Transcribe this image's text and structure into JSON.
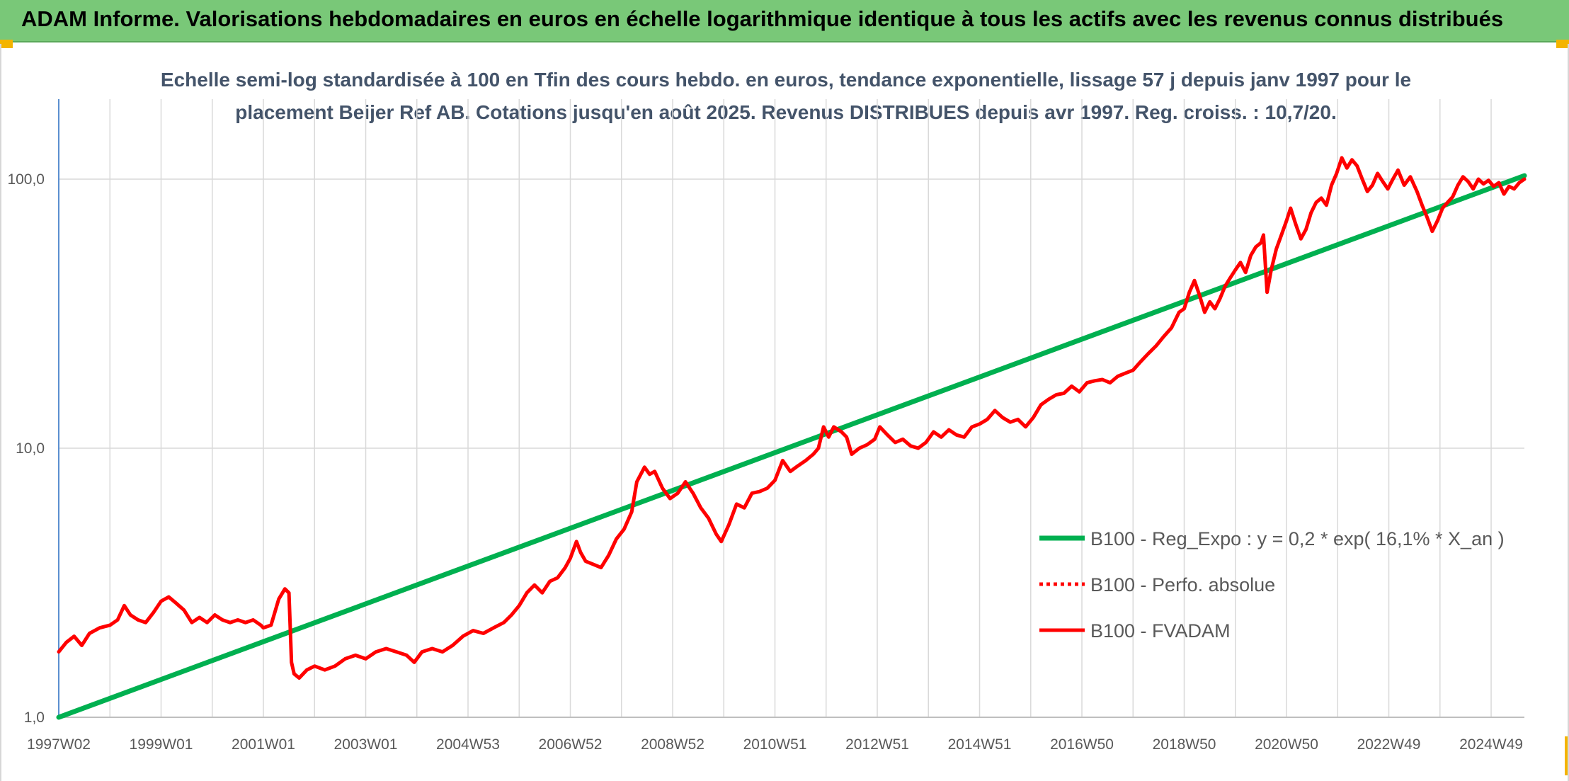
{
  "banner": {
    "title": "ADAM Informe. Valorisations hebdomadaires en euros en échelle logarithmique identique à tous les actifs avec les revenus connus distribués"
  },
  "colors": {
    "banner_bg": "#79c878",
    "trend": "#00b050",
    "series": "#ff0000",
    "grid": "#d9d9d9",
    "title_text": "#44546a"
  },
  "chart_data": {
    "type": "line",
    "title_lines": [
      "Echelle semi-log standardisée à 100 en Tfin des cours hebdo. en euros, tendance exponentielle, lissage 57 j depuis janv 1997 pour le",
      "placement Beijer Ref AB. Cotations jusqu'en août 2025. Revenus DISTRIBUES depuis avr 1997. Reg. croiss. : 10,7/20."
    ],
    "y_scale": "log",
    "ylim": [
      1,
      200
    ],
    "xlim": [
      1997.0,
      2025.65
    ],
    "y_ticks": [
      {
        "value": 1,
        "label": "1,0"
      },
      {
        "value": 10,
        "label": "10,0"
      },
      {
        "value": 100,
        "label": "100,0"
      }
    ],
    "x_ticks": [
      {
        "value": 1997.0,
        "label": "1997W02"
      },
      {
        "value": 1999.0,
        "label": "1999W01"
      },
      {
        "value": 2001.0,
        "label": "2001W01"
      },
      {
        "value": 2003.0,
        "label": "2003W01"
      },
      {
        "value": 2005.0,
        "label": "2004W53"
      },
      {
        "value": 2007.0,
        "label": "2006W52"
      },
      {
        "value": 2009.0,
        "label": "2008W52"
      },
      {
        "value": 2011.0,
        "label": "2010W51"
      },
      {
        "value": 2013.0,
        "label": "2012W51"
      },
      {
        "value": 2015.0,
        "label": "2014W51"
      },
      {
        "value": 2017.0,
        "label": "2016W50"
      },
      {
        "value": 2019.0,
        "label": "2018W50"
      },
      {
        "value": 2021.0,
        "label": "2020W50"
      },
      {
        "value": 2023.0,
        "label": "2022W49"
      },
      {
        "value": 2025.0,
        "label": "2024W49"
      }
    ],
    "x_tick_label_values": [
      1997.0,
      1999.0,
      2001.0,
      2003.0,
      2005.0,
      2007.0,
      2009.0,
      2011.0,
      2013.0,
      2015.0,
      2017.0,
      2019.0,
      2021.0,
      2023.0,
      2025.0
    ],
    "grid": true,
    "legend_position": "right",
    "series": [
      {
        "name": "B100 - Reg_Expo : y = 0,2 * exp( 16,1% *  X_an )",
        "style": "solid",
        "color": "#00b050",
        "points": [
          [
            1997.0,
            1.0
          ],
          [
            2025.65,
            103
          ]
        ]
      },
      {
        "name": "B100 - Perfo. absolue",
        "style": "dotted",
        "color": "#ff0000",
        "points": []
      },
      {
        "name": "B100 - FVADAM",
        "style": "solid",
        "color": "#ff0000",
        "points": [
          [
            1997.0,
            1.75
          ],
          [
            1997.15,
            1.9
          ],
          [
            1997.3,
            2.0
          ],
          [
            1997.45,
            1.85
          ],
          [
            1997.6,
            2.05
          ],
          [
            1997.8,
            2.15
          ],
          [
            1998.0,
            2.2
          ],
          [
            1998.15,
            2.3
          ],
          [
            1998.28,
            2.6
          ],
          [
            1998.4,
            2.4
          ],
          [
            1998.55,
            2.3
          ],
          [
            1998.7,
            2.25
          ],
          [
            1998.85,
            2.45
          ],
          [
            1999.0,
            2.7
          ],
          [
            1999.15,
            2.8
          ],
          [
            1999.3,
            2.65
          ],
          [
            1999.45,
            2.5
          ],
          [
            1999.6,
            2.25
          ],
          [
            1999.75,
            2.35
          ],
          [
            1999.9,
            2.25
          ],
          [
            2000.05,
            2.4
          ],
          [
            2000.2,
            2.3
          ],
          [
            2000.35,
            2.25
          ],
          [
            2000.5,
            2.3
          ],
          [
            2000.65,
            2.25
          ],
          [
            2000.8,
            2.3
          ],
          [
            2000.95,
            2.2
          ],
          [
            2001.0,
            2.15
          ],
          [
            2001.15,
            2.2
          ],
          [
            2001.3,
            2.75
          ],
          [
            2001.42,
            3.0
          ],
          [
            2001.5,
            2.9
          ],
          [
            2001.55,
            1.6
          ],
          [
            2001.6,
            1.45
          ],
          [
            2001.7,
            1.4
          ],
          [
            2001.85,
            1.5
          ],
          [
            2002.0,
            1.55
          ],
          [
            2002.2,
            1.5
          ],
          [
            2002.4,
            1.55
          ],
          [
            2002.6,
            1.65
          ],
          [
            2002.8,
            1.7
          ],
          [
            2003.0,
            1.65
          ],
          [
            2003.2,
            1.75
          ],
          [
            2003.4,
            1.8
          ],
          [
            2003.6,
            1.75
          ],
          [
            2003.8,
            1.7
          ],
          [
            2003.95,
            1.6
          ],
          [
            2004.1,
            1.75
          ],
          [
            2004.3,
            1.8
          ],
          [
            2004.5,
            1.75
          ],
          [
            2004.7,
            1.85
          ],
          [
            2004.9,
            2.0
          ],
          [
            2005.1,
            2.1
          ],
          [
            2005.3,
            2.05
          ],
          [
            2005.5,
            2.15
          ],
          [
            2005.7,
            2.25
          ],
          [
            2005.85,
            2.4
          ],
          [
            2006.0,
            2.6
          ],
          [
            2006.15,
            2.9
          ],
          [
            2006.3,
            3.1
          ],
          [
            2006.45,
            2.9
          ],
          [
            2006.6,
            3.2
          ],
          [
            2006.75,
            3.3
          ],
          [
            2006.9,
            3.6
          ],
          [
            2007.0,
            3.9
          ],
          [
            2007.12,
            4.5
          ],
          [
            2007.2,
            4.1
          ],
          [
            2007.3,
            3.8
          ],
          [
            2007.45,
            3.7
          ],
          [
            2007.6,
            3.6
          ],
          [
            2007.75,
            4.0
          ],
          [
            2007.9,
            4.6
          ],
          [
            2008.05,
            5.0
          ],
          [
            2008.2,
            5.8
          ],
          [
            2008.3,
            7.5
          ],
          [
            2008.45,
            8.5
          ],
          [
            2008.55,
            8.0
          ],
          [
            2008.65,
            8.2
          ],
          [
            2008.8,
            7.1
          ],
          [
            2008.95,
            6.5
          ],
          [
            2009.1,
            6.8
          ],
          [
            2009.25,
            7.5
          ],
          [
            2009.4,
            6.8
          ],
          [
            2009.55,
            6.0
          ],
          [
            2009.7,
            5.5
          ],
          [
            2009.85,
            4.8
          ],
          [
            2009.95,
            4.5
          ],
          [
            2010.1,
            5.2
          ],
          [
            2010.25,
            6.2
          ],
          [
            2010.4,
            6.0
          ],
          [
            2010.55,
            6.8
          ],
          [
            2010.7,
            6.9
          ],
          [
            2010.85,
            7.1
          ],
          [
            2011.0,
            7.6
          ],
          [
            2011.15,
            9.0
          ],
          [
            2011.3,
            8.2
          ],
          [
            2011.45,
            8.6
          ],
          [
            2011.6,
            9.0
          ],
          [
            2011.75,
            9.5
          ],
          [
            2011.85,
            10.0
          ],
          [
            2011.95,
            12.0
          ],
          [
            2012.05,
            11.0
          ],
          [
            2012.15,
            12.0
          ],
          [
            2012.3,
            11.5
          ],
          [
            2012.4,
            11.0
          ],
          [
            2012.5,
            9.5
          ],
          [
            2012.65,
            10.0
          ],
          [
            2012.8,
            10.3
          ],
          [
            2012.95,
            10.8
          ],
          [
            2013.05,
            12.0
          ],
          [
            2013.2,
            11.2
          ],
          [
            2013.35,
            10.5
          ],
          [
            2013.5,
            10.8
          ],
          [
            2013.65,
            10.2
          ],
          [
            2013.8,
            10.0
          ],
          [
            2013.95,
            10.5
          ],
          [
            2014.1,
            11.5
          ],
          [
            2014.25,
            11.0
          ],
          [
            2014.4,
            11.7
          ],
          [
            2014.55,
            11.2
          ],
          [
            2014.7,
            11.0
          ],
          [
            2014.85,
            12.0
          ],
          [
            2015.0,
            12.3
          ],
          [
            2015.15,
            12.8
          ],
          [
            2015.3,
            13.8
          ],
          [
            2015.45,
            13.0
          ],
          [
            2015.6,
            12.5
          ],
          [
            2015.75,
            12.8
          ],
          [
            2015.9,
            12.0
          ],
          [
            2016.05,
            13.0
          ],
          [
            2016.2,
            14.5
          ],
          [
            2016.35,
            15.2
          ],
          [
            2016.5,
            15.8
          ],
          [
            2016.65,
            16.0
          ],
          [
            2016.8,
            17.0
          ],
          [
            2016.95,
            16.2
          ],
          [
            2017.1,
            17.5
          ],
          [
            2017.25,
            17.8
          ],
          [
            2017.4,
            18.0
          ],
          [
            2017.55,
            17.5
          ],
          [
            2017.7,
            18.5
          ],
          [
            2017.85,
            19.0
          ],
          [
            2018.0,
            19.5
          ],
          [
            2018.15,
            21.0
          ],
          [
            2018.3,
            22.5
          ],
          [
            2018.45,
            24.0
          ],
          [
            2018.6,
            26.0
          ],
          [
            2018.75,
            28.0
          ],
          [
            2018.9,
            32.0
          ],
          [
            2019.0,
            33.0
          ],
          [
            2019.1,
            38.0
          ],
          [
            2019.2,
            42.0
          ],
          [
            2019.3,
            37.0
          ],
          [
            2019.4,
            32.0
          ],
          [
            2019.5,
            35.0
          ],
          [
            2019.6,
            33.0
          ],
          [
            2019.7,
            36.0
          ],
          [
            2019.8,
            40.0
          ],
          [
            2019.9,
            43.0
          ],
          [
            2020.0,
            46.0
          ],
          [
            2020.1,
            49.0
          ],
          [
            2020.2,
            45.0
          ],
          [
            2020.3,
            52.0
          ],
          [
            2020.4,
            56.0
          ],
          [
            2020.5,
            58.0
          ],
          [
            2020.55,
            62.0
          ],
          [
            2020.62,
            38.0
          ],
          [
            2020.7,
            46.0
          ],
          [
            2020.8,
            55.0
          ],
          [
            2020.9,
            62.0
          ],
          [
            2021.0,
            70.0
          ],
          [
            2021.08,
            78.0
          ],
          [
            2021.18,
            68.0
          ],
          [
            2021.28,
            60.0
          ],
          [
            2021.38,
            65.0
          ],
          [
            2021.48,
            75.0
          ],
          [
            2021.58,
            82.0
          ],
          [
            2021.68,
            85.0
          ],
          [
            2021.78,
            80.0
          ],
          [
            2021.88,
            95.0
          ],
          [
            2021.98,
            105.0
          ],
          [
            2022.08,
            120.0
          ],
          [
            2022.18,
            110.0
          ],
          [
            2022.28,
            118.0
          ],
          [
            2022.38,
            112.0
          ],
          [
            2022.48,
            100.0
          ],
          [
            2022.58,
            90.0
          ],
          [
            2022.68,
            95.0
          ],
          [
            2022.78,
            105.0
          ],
          [
            2022.88,
            98.0
          ],
          [
            2022.98,
            92.0
          ],
          [
            2023.08,
            100.0
          ],
          [
            2023.18,
            108.0
          ],
          [
            2023.3,
            95.0
          ],
          [
            2023.42,
            102.0
          ],
          [
            2023.55,
            90.0
          ],
          [
            2023.65,
            80.0
          ],
          [
            2023.75,
            72.0
          ],
          [
            2023.85,
            64.0
          ],
          [
            2023.95,
            70.0
          ],
          [
            2024.05,
            78.0
          ],
          [
            2024.15,
            82.0
          ],
          [
            2024.25,
            86.0
          ],
          [
            2024.35,
            95.0
          ],
          [
            2024.45,
            102.0
          ],
          [
            2024.55,
            98.0
          ],
          [
            2024.65,
            92.0
          ],
          [
            2024.75,
            100.0
          ],
          [
            2024.85,
            96.0
          ],
          [
            2024.95,
            99.0
          ],
          [
            2025.05,
            94.0
          ],
          [
            2025.15,
            97.0
          ],
          [
            2025.25,
            88.0
          ],
          [
            2025.35,
            94.0
          ],
          [
            2025.45,
            92.0
          ],
          [
            2025.55,
            97.0
          ],
          [
            2025.65,
            100.0
          ]
        ]
      }
    ]
  }
}
